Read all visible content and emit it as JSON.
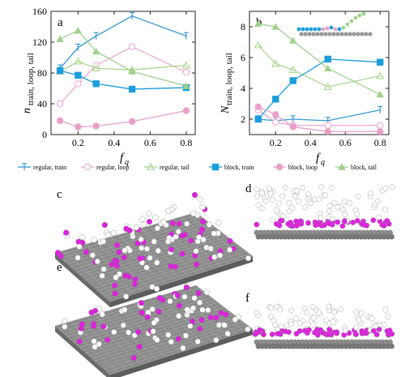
{
  "chart_data": [
    {
      "panel_label": "a",
      "type": "line",
      "xlabel_main": "f",
      "xlabel_sub": "q",
      "ylabel_main": "n",
      "ylabel_sub": "train, loop, tail",
      "xlim": [
        0.05,
        0.85
      ],
      "ylim": [
        0,
        160
      ],
      "x_ticks": [
        0.2,
        0.4,
        0.6,
        0.8
      ],
      "y_ticks": [
        0,
        40,
        80,
        120,
        160
      ],
      "series": [
        {
          "key": "regular_train",
          "x": [
            0.1,
            0.2,
            0.3,
            0.5,
            0.8
          ],
          "y": [
            86,
            113,
            128,
            154,
            128
          ]
        },
        {
          "key": "regular_loop",
          "x": [
            0.1,
            0.2,
            0.3,
            0.5,
            0.8
          ],
          "y": [
            40,
            66,
            90,
            114,
            81
          ]
        },
        {
          "key": "regular_tail",
          "x": [
            0.1,
            0.2,
            0.3,
            0.5,
            0.8
          ],
          "y": [
            82,
            95,
            86,
            84,
            90
          ]
        },
        {
          "key": "block_train",
          "x": [
            0.1,
            0.2,
            0.3,
            0.5,
            0.8
          ],
          "y": [
            83,
            77,
            66,
            59,
            61
          ]
        },
        {
          "key": "block_loop",
          "x": [
            0.1,
            0.2,
            0.3,
            0.5,
            0.8
          ],
          "y": [
            18,
            10,
            11,
            17,
            31
          ]
        },
        {
          "key": "block_tail",
          "x": [
            0.1,
            0.2,
            0.3,
            0.5,
            0.8
          ],
          "y": [
            124,
            135,
            108,
            82,
            63
          ]
        }
      ]
    },
    {
      "panel_label": "b",
      "type": "line",
      "xlabel_main": "f",
      "xlabel_sub": "q",
      "ylabel_main": "N",
      "ylabel_sub": "train, loop, tail",
      "xlim": [
        0.05,
        0.85
      ],
      "ylim": [
        1,
        9
      ],
      "x_ticks": [
        0.2,
        0.4,
        0.6,
        0.8
      ],
      "y_ticks": [
        2,
        4,
        6,
        8
      ],
      "series": [
        {
          "key": "regular_train",
          "x": [
            0.1,
            0.2,
            0.3,
            0.5,
            0.8
          ],
          "y": [
            2.0,
            1.9,
            2.0,
            1.9,
            2.6
          ]
        },
        {
          "key": "regular_loop",
          "x": [
            0.1,
            0.2,
            0.3,
            0.5,
            0.8
          ],
          "y": [
            2.6,
            1.8,
            1.6,
            1.6,
            1.6
          ]
        },
        {
          "key": "regular_tail",
          "x": [
            0.1,
            0.2,
            0.3,
            0.5,
            0.8
          ],
          "y": [
            6.8,
            5.6,
            5.2,
            4.1,
            4.8
          ]
        },
        {
          "key": "block_train",
          "x": [
            0.1,
            0.2,
            0.3,
            0.5,
            0.8
          ],
          "y": [
            2.0,
            3.3,
            4.5,
            5.9,
            5.7
          ]
        },
        {
          "key": "block_loop",
          "x": [
            0.1,
            0.2,
            0.3,
            0.5,
            0.8
          ],
          "y": [
            2.8,
            2.3,
            1.5,
            1.2,
            1.2
          ]
        },
        {
          "key": "block_tail",
          "x": [
            0.1,
            0.2,
            0.3,
            0.5,
            0.8
          ],
          "y": [
            8.2,
            8.0,
            7.1,
            5.3,
            3.6
          ]
        }
      ]
    }
  ],
  "legend": [
    {
      "key": "regular_train",
      "label": "regular, train",
      "color": "#3399d6",
      "marker": "bar"
    },
    {
      "key": "regular_loop",
      "label": "regular, loop",
      "color": "#eda8d0",
      "marker": "open-circle"
    },
    {
      "key": "regular_tail",
      "label": "regular, tail",
      "color": "#a8d890",
      "marker": "open-triangle"
    },
    {
      "key": "block_train",
      "label": "block, train",
      "color": "#1b9ddc",
      "marker": "square"
    },
    {
      "key": "block_loop",
      "label": "block, loop",
      "color": "#e9a0c8",
      "marker": "circle"
    },
    {
      "key": "block_tail",
      "label": "block, tail",
      "color": "#9fd18c",
      "marker": "triangle"
    }
  ],
  "snapshots": [
    {
      "label": "c",
      "view": "perspective"
    },
    {
      "label": "d",
      "view": "side"
    },
    {
      "label": "e",
      "view": "perspective"
    },
    {
      "label": "f",
      "view": "side"
    }
  ],
  "colors": {
    "train_bead": "#e020e0",
    "other_bead": "#ffffff",
    "substrate": "#8a8a8a"
  }
}
